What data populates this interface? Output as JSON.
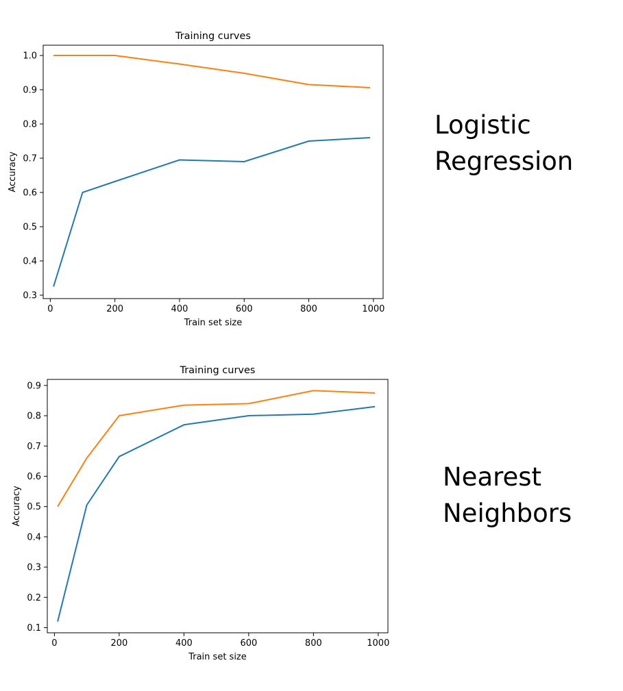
{
  "chart_data": [
    {
      "type": "line",
      "title": "Training curves",
      "xlabel": "Train set size",
      "ylabel": "Accuracy",
      "xlim": [
        -22,
        1030
      ],
      "ylim": [
        0.29,
        1.03
      ],
      "xticks": [
        0,
        200,
        400,
        600,
        800,
        1000
      ],
      "xtick_labels": [
        "0",
        "200",
        "400",
        "600",
        "800",
        "1000"
      ],
      "yticks": [
        0.3,
        0.4,
        0.5,
        0.6,
        0.7,
        0.8,
        0.9,
        1.0
      ],
      "ytick_labels": [
        "0.3",
        "0.4",
        "0.5",
        "0.6",
        "0.7",
        "0.8",
        "0.9",
        "1.0"
      ],
      "x": [
        10,
        100,
        200,
        400,
        600,
        800,
        990
      ],
      "series": [
        {
          "values": [
            0.325,
            0.6,
            0.632,
            0.695,
            0.69,
            0.75,
            0.76
          ],
          "color": "#1f77b4"
        },
        {
          "values": [
            1.0,
            1.0,
            1.0,
            0.975,
            0.948,
            0.915,
            0.906
          ],
          "color": "#ff7f0e"
        }
      ],
      "grid": false,
      "side_label": [
        "Logistic",
        "Regression"
      ]
    },
    {
      "type": "line",
      "title": "Training curves",
      "xlabel": "Train set size",
      "ylabel": "Accuracy",
      "xlim": [
        -22,
        1030
      ],
      "ylim": [
        0.083,
        0.92
      ],
      "xticks": [
        0,
        200,
        400,
        600,
        800,
        1000
      ],
      "xtick_labels": [
        "0",
        "200",
        "400",
        "600",
        "800",
        "1000"
      ],
      "yticks": [
        0.1,
        0.2,
        0.3,
        0.4,
        0.5,
        0.6,
        0.7,
        0.8,
        0.9
      ],
      "ytick_labels": [
        "0.1",
        "0.2",
        "0.3",
        "0.4",
        "0.5",
        "0.6",
        "0.7",
        "0.8",
        "0.9"
      ],
      "x": [
        10,
        100,
        200,
        400,
        600,
        800,
        990
      ],
      "series": [
        {
          "values": [
            0.12,
            0.505,
            0.665,
            0.77,
            0.8,
            0.805,
            0.83
          ],
          "color": "#1f77b4"
        },
        {
          "values": [
            0.5,
            0.66,
            0.8,
            0.835,
            0.84,
            0.883,
            0.875
          ],
          "color": "#ff7f0e"
        }
      ],
      "grid": false,
      "side_label": [
        "Nearest",
        "Neighbors"
      ]
    }
  ]
}
